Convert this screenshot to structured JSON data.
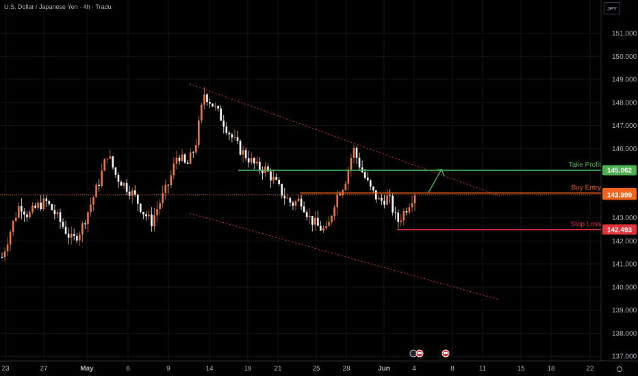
{
  "header": {
    "title": "U.S. Dollar / Japanese Yen · 4h · Tradu",
    "currency_button": "JPY"
  },
  "colors": {
    "background": "#000000",
    "up": "#ef7a45",
    "down": "#ffffff",
    "grid": "#151515",
    "take_profit": "#4caf50",
    "buy_entry": "#f0641e",
    "stop_loss": "#e0333b",
    "channel": "#e03a2e",
    "axis_text": "#b2b5be"
  },
  "chart_data": {
    "type": "candlestick",
    "title": "U.S. Dollar / Japanese Yen · 4h · Tradu",
    "ylim": [
      136.8,
      152.2
    ],
    "y_ticks": [
      137,
      138,
      139,
      140,
      141,
      142,
      143,
      144,
      145,
      146,
      147,
      148,
      149,
      150,
      151
    ],
    "y_tick_labels": [
      "137.000",
      "138.000",
      "139.000",
      "140.000",
      "141.000",
      "142.000",
      "143.000",
      "144.000",
      "145.000",
      "146.000",
      "147.000",
      "148.000",
      "149.000",
      "150.000",
      "151.000"
    ],
    "x_ticks": [
      "23",
      "27",
      "May",
      "6",
      "9",
      "14",
      "18",
      "21",
      "25",
      "28",
      "Jun",
      "4",
      "8",
      "11",
      "15",
      "18",
      "22"
    ],
    "ohlc_anchors": [
      [
        "23",
        141.3
      ],
      [
        "",
        142.5
      ],
      [
        "",
        143.6
      ],
      [
        "",
        143.1
      ],
      [
        "",
        143.5
      ],
      [
        "27",
        143.7
      ],
      [
        "",
        143.2
      ],
      [
        "",
        142.6
      ],
      [
        "",
        142.0
      ],
      [
        "",
        142.5
      ],
      [
        "",
        143.5
      ],
      [
        "",
        144.5
      ],
      [
        "May",
        145.8
      ],
      [
        "",
        144.8
      ],
      [
        "",
        144.4
      ],
      [
        "",
        144.0
      ],
      [
        "",
        143.3
      ],
      [
        "6",
        142.8
      ],
      [
        "",
        143.7
      ],
      [
        "",
        144.5
      ],
      [
        "",
        145.8
      ],
      [
        "9",
        145.2
      ],
      [
        "",
        146.1
      ],
      [
        "",
        148.4
      ],
      [
        "",
        147.9
      ],
      [
        "",
        147.3
      ],
      [
        "14",
        146.6
      ],
      [
        "",
        146.0
      ],
      [
        "",
        145.6
      ],
      [
        "18",
        145.2
      ],
      [
        "",
        145.1
      ],
      [
        "21",
        144.6
      ],
      [
        "",
        144.0
      ],
      [
        "",
        143.6
      ],
      [
        "",
        143.8
      ],
      [
        "25",
        143.0
      ],
      [
        "",
        142.6
      ],
      [
        "",
        142.4
      ],
      [
        "",
        143.9
      ],
      [
        "28",
        144.5
      ],
      [
        "",
        146.0
      ],
      [
        "",
        145.0
      ],
      [
        "",
        144.2
      ],
      [
        "Jun",
        143.7
      ],
      [
        "",
        143.9
      ],
      [
        "",
        142.8
      ],
      [
        "",
        143.4
      ],
      [
        "4",
        144.1
      ]
    ],
    "channel_upper": [
      [
        "10",
        148.8
      ],
      [
        "13",
        143.95
      ]
    ],
    "channel_lower": [
      [
        "10",
        143.2
      ],
      [
        "13",
        139.45
      ]
    ],
    "levels": [
      {
        "name": "Take Profit",
        "value": 145.062,
        "label": "145.062"
      },
      {
        "name": "Buy Entry",
        "value": 144.075,
        "label": "144.075"
      },
      {
        "name": "Stop Loss",
        "value": 142.493,
        "label": "142.493"
      }
    ],
    "current_price": {
      "value": 143.999,
      "label": "143.999"
    },
    "projection": [
      [
        "5",
        144.1
      ],
      [
        "6",
        145.1
      ],
      [
        "6.2",
        144.8
      ]
    ],
    "grid": true,
    "legend": "none"
  }
}
